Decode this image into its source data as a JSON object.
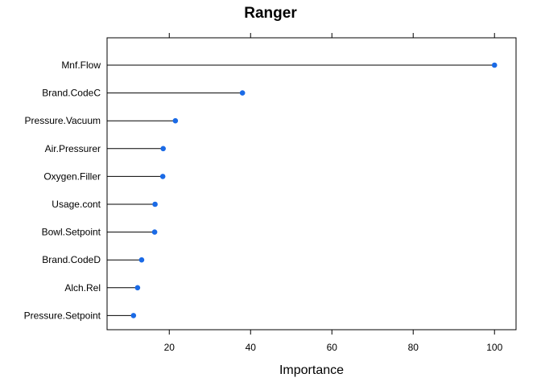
{
  "chart_data": {
    "type": "dot",
    "title": "Ranger",
    "xlabel": "Importance",
    "ylabel": "",
    "xlim": [
      4.7,
      105.3
    ],
    "x_ticks": [
      20,
      40,
      60,
      80,
      100
    ],
    "categories": [
      "Mnf.Flow",
      "Brand.CodeC",
      "Pressure.Vacuum",
      "Air.Pressurer",
      "Oxygen.Filler",
      "Usage.cont",
      "Bowl.Setpoint",
      "Brand.CodeD",
      "Alch.Rel",
      "Pressure.Setpoint"
    ],
    "values": [
      100,
      38,
      21.5,
      18.5,
      18.4,
      16.5,
      16.4,
      13.2,
      12.2,
      11.2
    ],
    "grid": false,
    "colors": {
      "point": "#1a6ae6",
      "stem": "#000000",
      "frame": "#000000"
    }
  }
}
